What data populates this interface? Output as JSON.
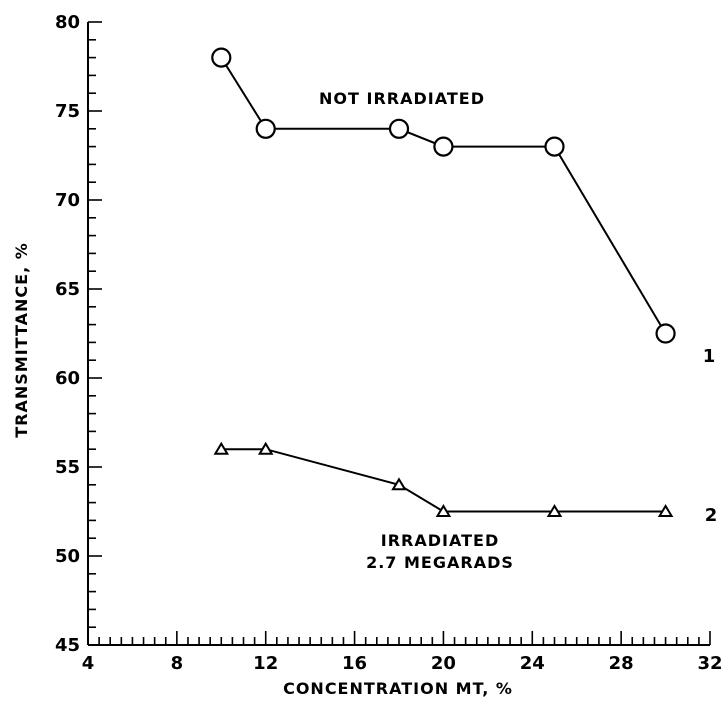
{
  "chart_data": {
    "type": "line",
    "xlabel": "CONCENTRATION MT, %",
    "ylabel": "TRANSMITTANCE, %",
    "xlim": [
      4,
      32
    ],
    "ylim": [
      45,
      80
    ],
    "x_ticks": [
      4,
      8,
      12,
      16,
      20,
      24,
      28,
      32
    ],
    "y_ticks": [
      45,
      50,
      55,
      60,
      65,
      70,
      75,
      80
    ],
    "x_minor_step": 0.5,
    "y_minor_step": 1,
    "grid": false,
    "series": [
      {
        "name": "1",
        "label": "NOT IRRADIATED",
        "marker": "circle",
        "x": [
          10,
          12,
          18,
          20,
          25,
          30
        ],
        "y": [
          78,
          74,
          74,
          73,
          73,
          62.5
        ]
      },
      {
        "name": "2",
        "label_lines": [
          "IRRADIATED",
          "2.7 MEGARADS"
        ],
        "marker": "triangle",
        "x": [
          10,
          12,
          18,
          20,
          25,
          30
        ],
        "y": [
          56,
          56,
          54,
          52.5,
          52.5,
          52.5
        ]
      }
    ]
  }
}
